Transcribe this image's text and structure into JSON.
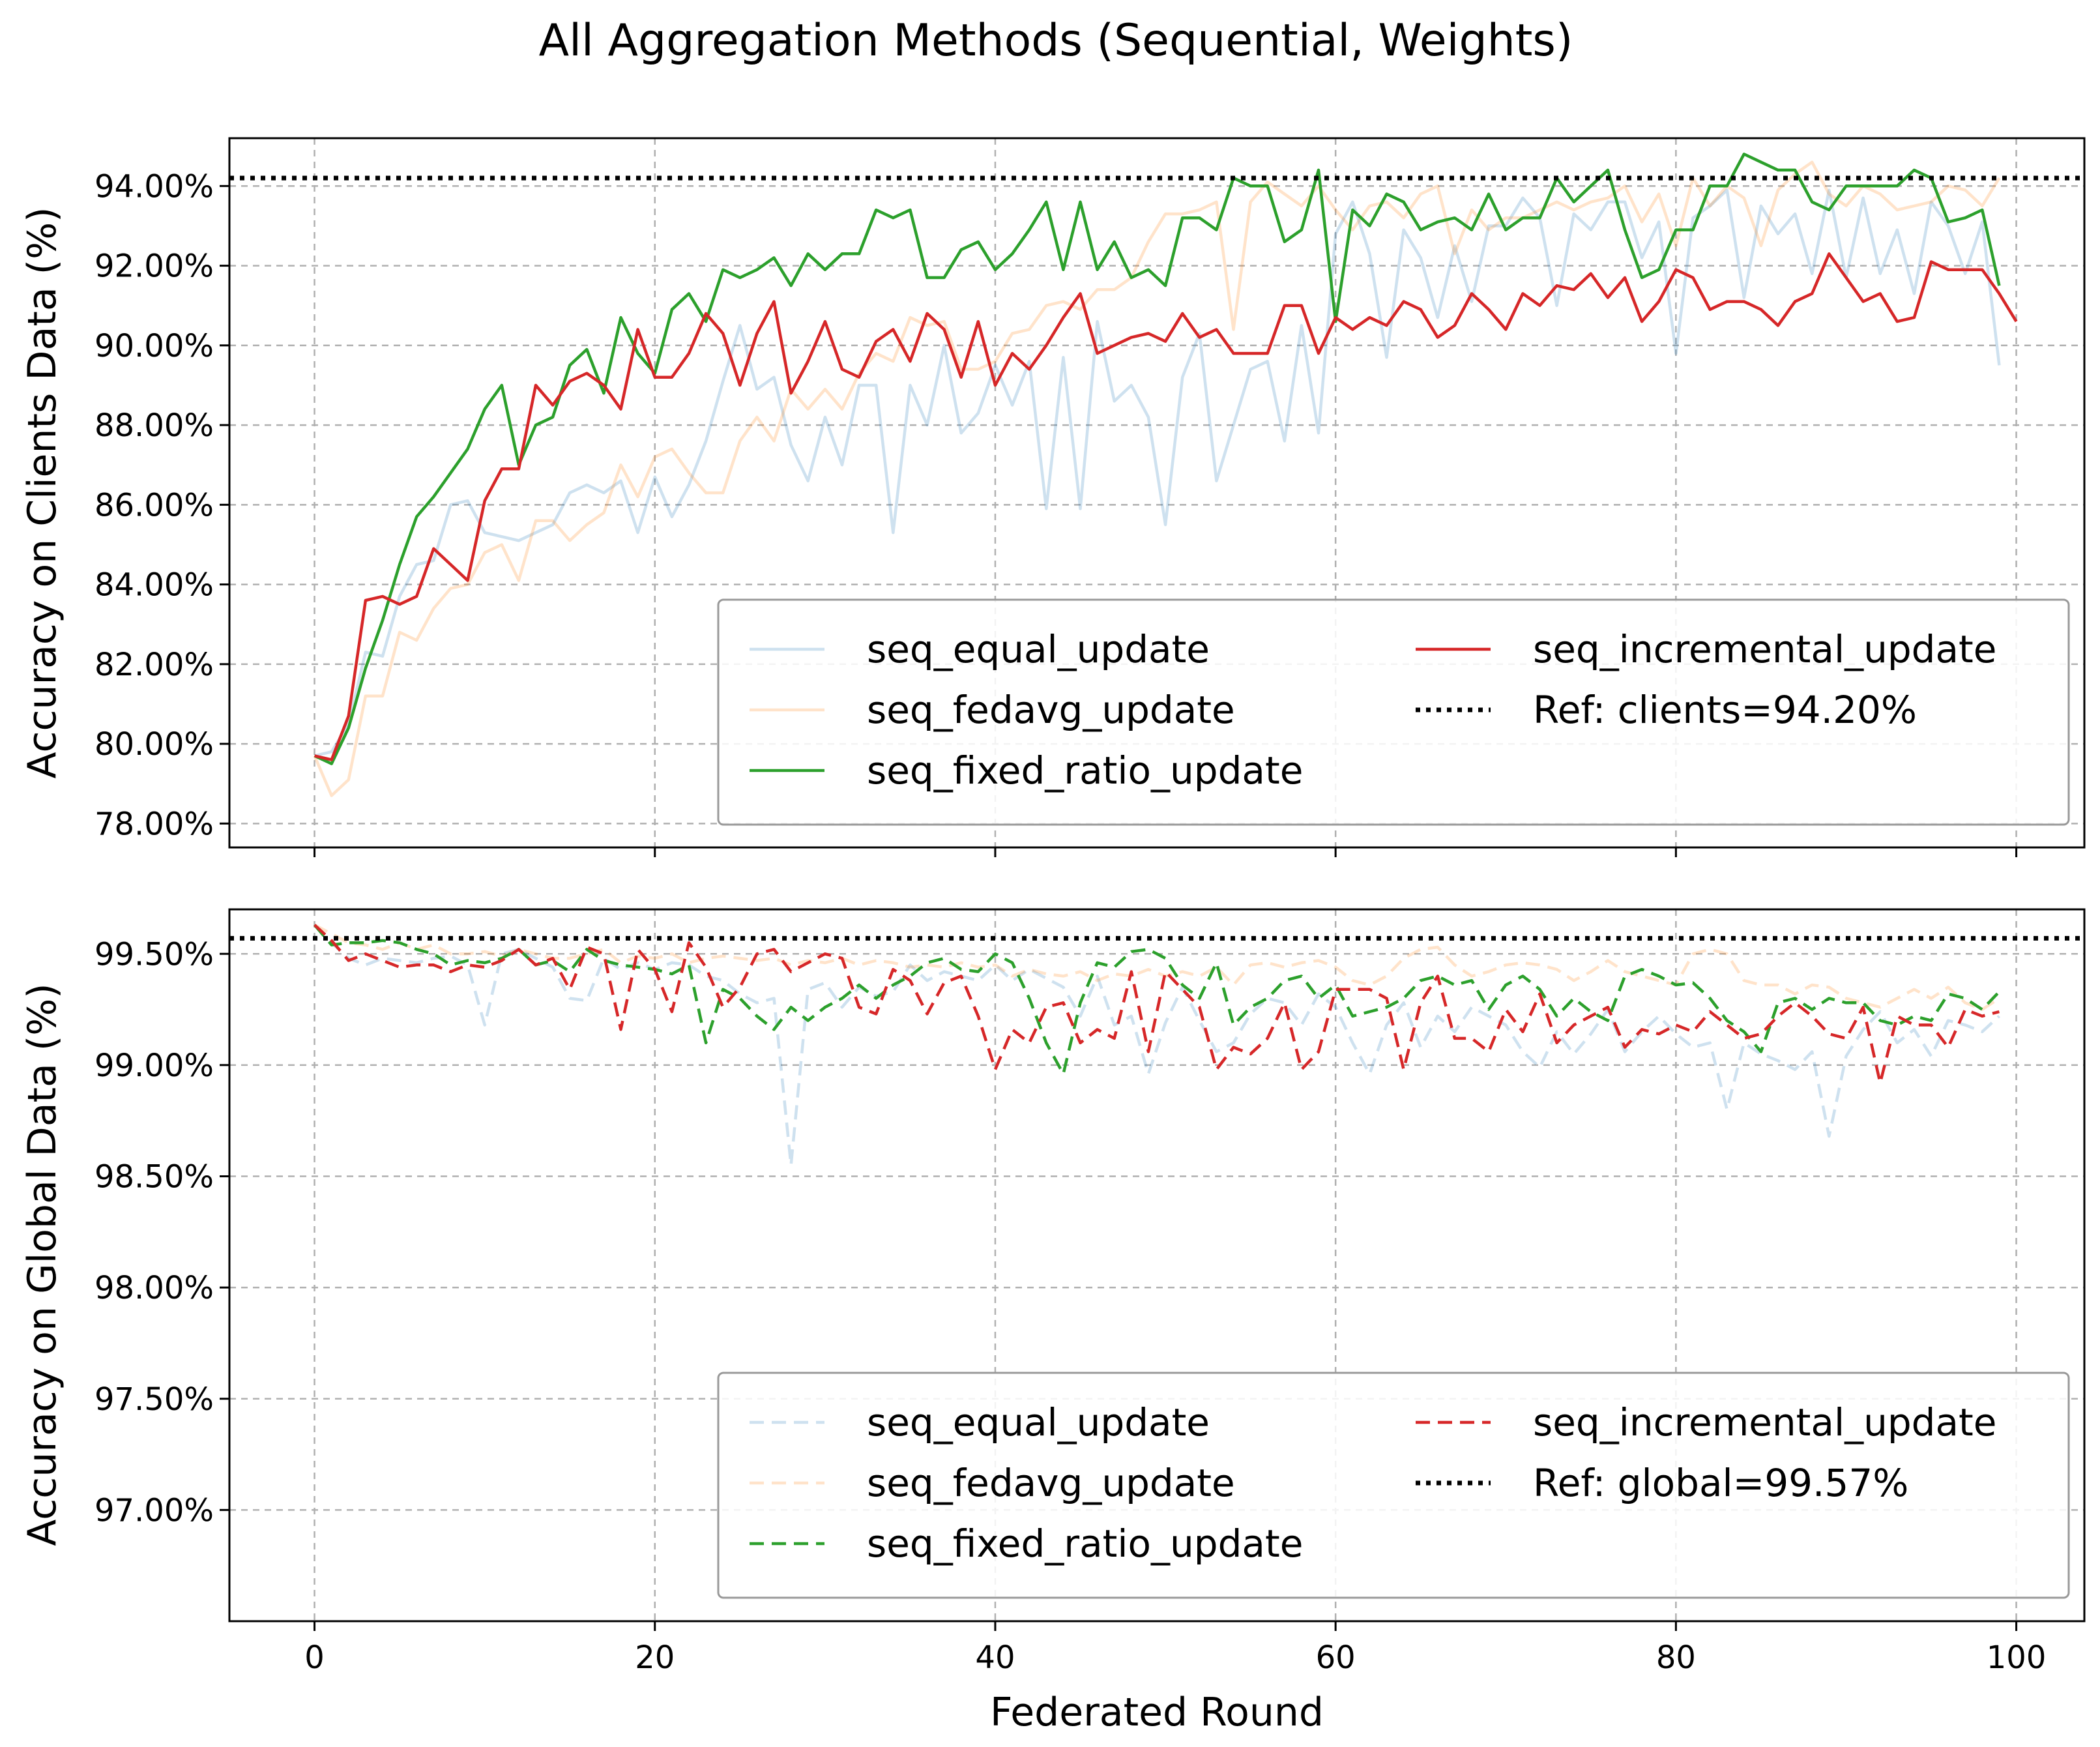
{
  "title": "All Aggregation Methods (Sequential, Weights)",
  "colors": {
    "seq_equal_update": "#1f77b4",
    "seq_fedavg_update": "#ff7f0e",
    "seq_fixed_ratio_update": "#2ca02c",
    "seq_incremental_update": "#d62728",
    "reference": "#000000"
  },
  "chart_data": [
    {
      "type": "line",
      "panel": "top",
      "xlabel": "",
      "ylabel": "Accuracy on Clients Data (%)",
      "xlim": [
        -5,
        104
      ],
      "ylim": [
        77.4,
        95.2
      ],
      "xticks": [
        0,
        20,
        40,
        60,
        80,
        100
      ],
      "xtick_labels": [],
      "yticks": [
        78,
        80,
        82,
        84,
        86,
        88,
        90,
        92,
        94
      ],
      "ytick_labels": [
        "78.00%",
        "80.00%",
        "82.00%",
        "84.00%",
        "86.00%",
        "88.00%",
        "90.00%",
        "92.00%",
        "94.00%"
      ],
      "grid": true,
      "legend_placement": "lower-right",
      "line_style": "solid",
      "reference": {
        "label": "Ref: clients=94.20%",
        "value": 94.2
      },
      "series": [
        {
          "name": "seq_equal_update",
          "faded": true,
          "values": [
            79.7,
            79.8,
            80.5,
            82.3,
            82.2,
            83.7,
            84.5,
            84.6,
            86.0,
            86.1,
            85.3,
            85.2,
            85.1,
            85.3,
            85.5,
            86.3,
            86.5,
            86.3,
            86.6,
            85.3,
            86.7,
            85.7,
            86.5,
            87.6,
            89.1,
            90.5,
            88.9,
            89.2,
            87.5,
            86.6,
            88.2,
            87.0,
            89.0,
            89.0,
            85.3,
            89.0,
            88.0,
            90.0,
            87.8,
            88.3,
            89.5,
            88.5,
            89.6,
            85.9,
            89.7,
            85.9,
            90.6,
            88.6,
            89.0,
            88.2,
            85.5,
            89.2,
            90.3,
            86.6,
            88.0,
            89.4,
            89.6,
            87.6,
            90.5,
            87.8,
            92.8,
            93.6,
            92.3,
            89.7,
            92.9,
            92.2,
            90.7,
            92.5,
            91.1,
            93.0,
            93.0,
            93.7,
            93.2,
            91.0,
            93.3,
            92.9,
            93.6,
            93.6,
            92.2,
            93.1,
            89.8,
            93.2,
            93.5,
            93.9,
            91.2,
            93.5,
            92.8,
            93.3,
            91.8,
            93.9,
            91.7,
            93.7,
            91.8,
            92.9,
            91.3,
            93.6,
            93.0,
            91.8,
            93.1,
            89.5
          ]
        },
        {
          "name": "seq_fedavg_update",
          "faded": true,
          "values": [
            79.7,
            78.7,
            79.1,
            81.2,
            81.2,
            82.8,
            82.6,
            83.4,
            83.9,
            84.0,
            84.8,
            85.0,
            84.1,
            85.6,
            85.6,
            85.1,
            85.5,
            85.8,
            87.0,
            86.2,
            87.2,
            87.4,
            86.8,
            86.3,
            86.3,
            87.6,
            88.2,
            87.6,
            88.9,
            88.4,
            88.9,
            88.4,
            89.3,
            89.8,
            89.6,
            90.7,
            90.5,
            90.6,
            89.4,
            89.4,
            89.6,
            90.3,
            90.4,
            91.0,
            91.1,
            90.9,
            91.4,
            91.4,
            91.7,
            92.6,
            93.3,
            93.3,
            93.4,
            93.6,
            90.4,
            93.6,
            94.1,
            93.8,
            93.5,
            94.0,
            93.4,
            92.9,
            93.5,
            93.6,
            93.2,
            93.8,
            94.0,
            92.3,
            93.4,
            92.9,
            93.2,
            93.2,
            93.4,
            93.6,
            93.4,
            93.6,
            93.7,
            94.0,
            93.1,
            93.8,
            92.5,
            94.2,
            93.5,
            94.0,
            93.7,
            92.5,
            93.9,
            94.3,
            94.6,
            93.8,
            93.5,
            94.0,
            93.8,
            93.4,
            93.5,
            93.6,
            94.0,
            93.9,
            93.5,
            94.2
          ]
        },
        {
          "name": "seq_fixed_ratio_update",
          "faded": false,
          "values": [
            79.7,
            79.5,
            80.4,
            81.9,
            83.1,
            84.5,
            85.7,
            86.2,
            86.8,
            87.4,
            88.4,
            89.0,
            87.0,
            88.0,
            88.2,
            89.5,
            89.9,
            88.8,
            90.7,
            89.8,
            89.3,
            90.9,
            91.3,
            90.6,
            91.9,
            91.7,
            91.9,
            92.2,
            91.5,
            92.3,
            91.9,
            92.3,
            92.3,
            93.4,
            93.2,
            93.4,
            91.7,
            91.7,
            92.4,
            92.6,
            91.9,
            92.3,
            92.9,
            93.6,
            91.9,
            93.6,
            91.9,
            92.6,
            91.7,
            91.9,
            91.5,
            93.2,
            93.2,
            92.9,
            94.2,
            94.0,
            94.0,
            92.6,
            92.9,
            94.4,
            90.6,
            93.4,
            93.0,
            93.8,
            93.6,
            92.9,
            93.1,
            93.2,
            92.9,
            93.8,
            92.9,
            93.2,
            93.2,
            94.2,
            93.6,
            94.0,
            94.4,
            92.9,
            91.7,
            91.9,
            92.9,
            92.9,
            94.0,
            94.0,
            94.8,
            94.6,
            94.4,
            94.4,
            93.6,
            93.4,
            94.0,
            94.0,
            94.0,
            94.0,
            94.4,
            94.2,
            93.1,
            93.2,
            93.4,
            91.5
          ]
        },
        {
          "name": "seq_incremental_update",
          "faded": false,
          "values": [
            79.7,
            79.6,
            80.7,
            83.6,
            83.7,
            83.5,
            83.7,
            84.9,
            84.5,
            84.1,
            86.1,
            86.9,
            86.9,
            89.0,
            88.5,
            89.1,
            89.3,
            89.0,
            88.4,
            90.4,
            89.2,
            89.2,
            89.8,
            90.8,
            90.3,
            89.0,
            90.3,
            91.1,
            88.8,
            89.6,
            90.6,
            89.4,
            89.2,
            90.1,
            90.4,
            89.6,
            90.8,
            90.4,
            89.2,
            90.6,
            89.0,
            89.8,
            89.4,
            90.0,
            90.7,
            91.3,
            89.8,
            90.0,
            90.2,
            90.3,
            90.1,
            90.8,
            90.2,
            90.4,
            89.8,
            89.8,
            89.8,
            91.0,
            91.0,
            89.8,
            90.7,
            90.4,
            90.7,
            90.5,
            91.1,
            90.9,
            90.2,
            90.5,
            91.3,
            90.9,
            90.4,
            91.3,
            91.0,
            91.5,
            91.4,
            91.8,
            91.2,
            91.7,
            90.6,
            91.1,
            91.9,
            91.7,
            90.9,
            91.1,
            91.1,
            90.9,
            90.5,
            91.1,
            91.3,
            92.3,
            91.7,
            91.1,
            91.3,
            90.6,
            90.7,
            92.1,
            91.9,
            91.9,
            91.9,
            91.3,
            90.6
          ]
        }
      ]
    },
    {
      "type": "line",
      "panel": "bottom",
      "xlabel": "Federated Round",
      "ylabel": "Accuracy on Global Data (%)",
      "xlim": [
        -5,
        104
      ],
      "ylim": [
        96.5,
        99.7
      ],
      "xticks": [
        0,
        20,
        40,
        60,
        80,
        100
      ],
      "xtick_labels": [
        "0",
        "20",
        "40",
        "60",
        "80",
        "100"
      ],
      "yticks": [
        97.0,
        97.5,
        98.0,
        98.5,
        99.0,
        99.5
      ],
      "ytick_labels": [
        "97.00%",
        "97.50%",
        "98.00%",
        "98.50%",
        "99.00%",
        "99.50%"
      ],
      "grid": true,
      "legend_placement": "lower-right",
      "line_style": "dashed",
      "reference": {
        "label": "Ref: global=99.57%",
        "value": 99.57
      },
      "series": [
        {
          "name": "seq_equal_update",
          "faded": true,
          "values": [
            99.63,
            99.55,
            99.48,
            99.45,
            99.48,
            99.47,
            99.46,
            99.48,
            99.49,
            99.45,
            99.18,
            99.5,
            99.52,
            99.48,
            99.44,
            99.3,
            99.29,
            99.48,
            99.43,
            99.46,
            99.43,
            99.46,
            99.45,
            99.4,
            99.38,
            99.32,
            99.28,
            99.3,
            98.55,
            99.34,
            99.37,
            99.26,
            99.35,
            99.31,
            99.33,
            99.45,
            99.38,
            99.42,
            99.4,
            99.38,
            99.45,
            99.38,
            99.43,
            99.39,
            99.35,
            99.22,
            99.4,
            99.18,
            99.22,
            98.96,
            99.19,
            99.35,
            99.2,
            99.06,
            99.1,
            99.23,
            99.3,
            99.28,
            99.18,
            99.32,
            99.26,
            99.1,
            98.96,
            99.18,
            99.28,
            99.08,
            99.22,
            99.15,
            99.26,
            99.22,
            99.18,
            99.06,
            98.99,
            99.15,
            99.05,
            99.14,
            99.25,
            99.06,
            99.15,
            99.22,
            99.14,
            99.08,
            99.1,
            98.8,
            99.1,
            99.05,
            99.02,
            98.98,
            99.06,
            98.68,
            99.04,
            99.16,
            99.24,
            99.1,
            99.16,
            99.04,
            99.2,
            99.18,
            99.15,
            99.22
          ]
        },
        {
          "name": "seq_fedavg_update",
          "faded": true,
          "values": [
            99.63,
            99.59,
            99.55,
            99.54,
            99.52,
            99.55,
            99.52,
            99.54,
            99.5,
            99.5,
            99.51,
            99.49,
            99.52,
            99.5,
            99.48,
            99.48,
            99.5,
            99.52,
            99.46,
            99.49,
            99.48,
            99.5,
            99.46,
            99.48,
            99.49,
            99.48,
            99.47,
            99.48,
            99.45,
            99.47,
            99.46,
            99.48,
            99.45,
            99.47,
            99.46,
            99.44,
            99.45,
            99.44,
            99.46,
            99.44,
            99.45,
            99.4,
            99.43,
            99.41,
            99.4,
            99.42,
            99.38,
            99.41,
            99.4,
            99.43,
            99.4,
            99.42,
            99.4,
            99.44,
            99.36,
            99.45,
            99.46,
            99.44,
            99.46,
            99.47,
            99.44,
            99.38,
            99.36,
            99.4,
            99.48,
            99.52,
            99.53,
            99.45,
            99.4,
            99.42,
            99.45,
            99.46,
            99.45,
            99.43,
            99.38,
            99.42,
            99.47,
            99.42,
            99.4,
            99.38,
            99.36,
            99.5,
            99.52,
            99.5,
            99.38,
            99.36,
            99.36,
            99.32,
            99.36,
            99.35,
            99.3,
            99.28,
            99.26,
            99.3,
            99.34,
            99.3,
            99.35,
            99.28,
            99.25,
            99.3
          ]
        },
        {
          "name": "seq_fixed_ratio_update",
          "faded": false,
          "values": [
            99.63,
            99.54,
            99.55,
            99.55,
            99.56,
            99.55,
            99.52,
            99.5,
            99.45,
            99.47,
            99.46,
            99.48,
            99.52,
            99.45,
            99.47,
            99.42,
            99.52,
            99.47,
            99.45,
            99.44,
            99.43,
            99.41,
            99.45,
            99.1,
            99.34,
            99.3,
            99.22,
            99.16,
            99.26,
            99.2,
            99.26,
            99.3,
            99.36,
            99.3,
            99.36,
            99.4,
            99.46,
            99.48,
            99.43,
            99.42,
            99.5,
            99.46,
            99.3,
            99.1,
            98.96,
            99.28,
            99.46,
            99.44,
            99.51,
            99.52,
            99.48,
            99.36,
            99.3,
            99.46,
            99.18,
            99.26,
            99.3,
            99.38,
            99.4,
            99.3,
            99.36,
            99.22,
            99.24,
            99.26,
            99.3,
            99.38,
            99.4,
            99.36,
            99.38,
            99.25,
            99.36,
            99.4,
            99.34,
            99.22,
            99.3,
            99.24,
            99.2,
            99.4,
            99.43,
            99.4,
            99.36,
            99.37,
            99.3,
            99.2,
            99.15,
            99.06,
            99.28,
            99.3,
            99.25,
            99.3,
            99.28,
            99.28,
            99.2,
            99.18,
            99.22,
            99.2,
            99.32,
            99.3,
            99.25,
            99.33
          ]
        },
        {
          "name": "seq_incremental_update",
          "faded": false,
          "values": [
            99.63,
            99.56,
            99.47,
            99.5,
            99.47,
            99.44,
            99.45,
            99.45,
            99.42,
            99.45,
            99.44,
            99.47,
            99.52,
            99.45,
            99.48,
            99.34,
            99.53,
            99.5,
            99.16,
            99.52,
            99.43,
            99.24,
            99.55,
            99.44,
            99.26,
            99.35,
            99.5,
            99.52,
            99.42,
            99.46,
            99.5,
            99.48,
            99.26,
            99.23,
            99.43,
            99.38,
            99.23,
            99.37,
            99.4,
            99.22,
            98.98,
            99.16,
            99.1,
            99.26,
            99.28,
            99.1,
            99.16,
            99.12,
            99.42,
            99.06,
            99.42,
            99.34,
            99.26,
            98.98,
            99.08,
            99.05,
            99.12,
            99.28,
            98.98,
            99.06,
            99.34,
            99.34,
            99.34,
            99.3,
            98.98,
            99.28,
            99.4,
            99.12,
            99.12,
            99.06,
            99.25,
            99.15,
            99.32,
            99.1,
            99.18,
            99.22,
            99.26,
            99.08,
            99.16,
            99.14,
            99.18,
            99.15,
            99.24,
            99.18,
            99.12,
            99.14,
            99.22,
            99.28,
            99.22,
            99.14,
            99.12,
            99.26,
            98.92,
            99.22,
            99.18,
            99.18,
            99.08,
            99.25,
            99.22,
            99.24
          ]
        }
      ]
    }
  ]
}
